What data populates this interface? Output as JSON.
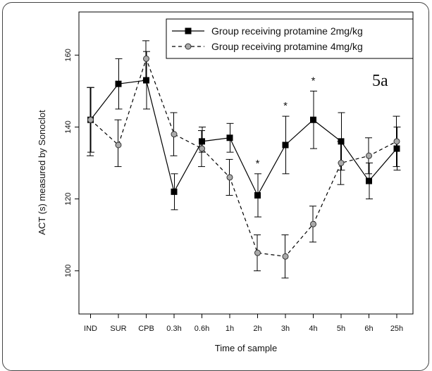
{
  "chart_data": {
    "type": "line",
    "panel_label": "5a",
    "categories": [
      "IND",
      "SUR",
      "CPB",
      "0.3h",
      "0.6h",
      "1h",
      "2h",
      "3h",
      "4h",
      "5h",
      "6h",
      "25h"
    ],
    "xlabel": "Time of sample",
    "ylabel": "ACT (s) measured by Sonoclot",
    "ylim": [
      88,
      172
    ],
    "yticks": [
      100,
      120,
      140,
      160
    ],
    "series": [
      {
        "name": "Group receiving protamine 2mg/kg",
        "style": "solid",
        "marker": "square",
        "color": "#000000",
        "values": [
          142,
          152,
          153,
          122,
          136,
          137,
          121,
          135,
          142,
          136,
          125,
          134
        ],
        "error_low": [
          133,
          145,
          145,
          117,
          133,
          133,
          115,
          127,
          134,
          128,
          120,
          128
        ],
        "error_high": [
          151,
          159,
          161,
          127,
          140,
          141,
          127,
          143,
          150,
          144,
          130,
          140
        ]
      },
      {
        "name": "Group receiving protamine 4mg/kg",
        "style": "dashed",
        "marker": "circle",
        "color": "#aaaaaa",
        "values": [
          142,
          135,
          159,
          138,
          134,
          126,
          105,
          104,
          113,
          130,
          132,
          136
        ],
        "error_low": [
          132,
          129,
          153,
          132,
          129,
          121,
          100,
          98,
          108,
          124,
          127,
          129
        ],
        "error_high": [
          151,
          142,
          164,
          144,
          139,
          131,
          110,
          110,
          118,
          136,
          137,
          143
        ]
      }
    ],
    "significance_markers": [
      {
        "category": "2h",
        "label": "*"
      },
      {
        "category": "3h",
        "label": "*"
      },
      {
        "category": "4h",
        "label": "*"
      }
    ],
    "legend_position": "top-right",
    "grid": false
  }
}
